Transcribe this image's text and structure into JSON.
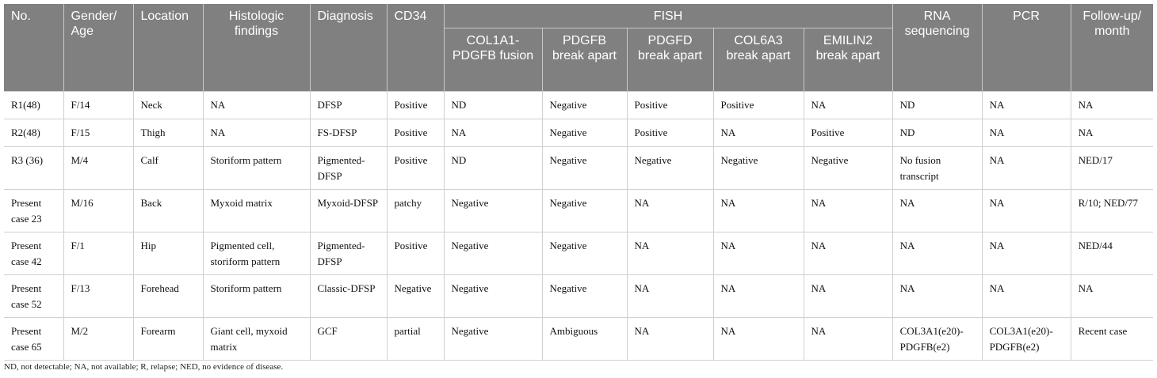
{
  "headers": {
    "no": "No.",
    "gender_age": "Gender/ Age",
    "location": "Location",
    "histologic": "Histologic findings",
    "diagnosis": "Diagnosis",
    "cd34": "CD34",
    "fish": "FISH",
    "fish_sub": [
      "COL1A1-PDGFB fusion",
      "PDGFB break apart",
      "PDGFD break apart",
      "COL6A3 break apart",
      "EMILIN2 break apart"
    ],
    "rna": "RNA sequencing",
    "pcr": "PCR",
    "followup": "Follow-up/ month"
  },
  "rows": [
    [
      "R1(48)",
      "F/14",
      "Neck",
      "NA",
      "DFSP",
      "Positive",
      "ND",
      "Negative",
      "Positive",
      "Positive",
      "NA",
      "ND",
      "NA",
      "NA"
    ],
    [
      "R2(48)",
      "F/15",
      "Thigh",
      "NA",
      "FS-DFSP",
      "Positive",
      "NA",
      "Negative",
      "Positive",
      "NA",
      "Positive",
      "ND",
      "NA",
      "NA"
    ],
    [
      "R3 (36)",
      "M/4",
      "Calf",
      "Storiform pattern",
      "Pigmented-DFSP",
      "Positive",
      "ND",
      "Negative",
      "Negative",
      "Negative",
      "Negative",
      "No fusion transcript",
      "NA",
      "NED/17"
    ],
    [
      "Present case 23",
      "M/16",
      "Back",
      "Myxoid matrix",
      "Myxoid-DFSP",
      "patchy",
      "Negative",
      "Negative",
      "NA",
      "NA",
      "NA",
      "NA",
      "NA",
      "R/10; NED/77"
    ],
    [
      "Present case 42",
      "F/1",
      "Hip",
      "Pigmented cell, storiform pattern",
      "Pigmented-DFSP",
      "Positive",
      "Negative",
      "Negative",
      "NA",
      "NA",
      "NA",
      "NA",
      "NA",
      "NED/44"
    ],
    [
      "Present case 52",
      "F/13",
      "Forehead",
      "Storiform pattern",
      "Classic-DFSP",
      "Negative",
      "Negative",
      "Negative",
      "NA",
      "NA",
      "NA",
      "NA",
      "NA",
      "NA"
    ],
    [
      "Present case 65",
      "M/2",
      "Forearm",
      "Giant cell, myxoid matrix",
      "GCF",
      "partial",
      "Negative",
      "Ambiguous",
      "NA",
      "NA",
      "NA",
      "COL3A1(e20)-PDGFB(e2)",
      "COL3A1(e20)-PDGFB(e2)",
      "Recent case"
    ]
  ],
  "footnote": "ND, not detectable; NA, not available; R, relapse; NED, no evidence of disease."
}
